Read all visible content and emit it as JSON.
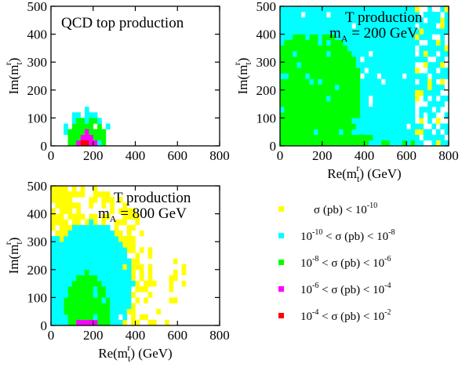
{
  "colors": {
    "band1": "#ffff00",
    "band2": "#00ffff",
    "band3": "#00ff00",
    "band4": "#ff00ff",
    "band5": "#ff0000"
  },
  "legend": {
    "entries": [
      {
        "color": "#ffff00",
        "left": "",
        "op1": "",
        "mid": "σ (pb)",
        "op2": "<",
        "right_base": "10",
        "right_exp": "-10"
      },
      {
        "color": "#00ffff",
        "left_base": "10",
        "left_exp": "-10",
        "op1": "<",
        "mid": "σ (pb)",
        "op2": "<",
        "right_base": "10",
        "right_exp": "-8"
      },
      {
        "color": "#00ff00",
        "left_base": "10",
        "left_exp": "-8",
        "op1": "<",
        "mid": "σ (pb)",
        "op2": "<",
        "right_base": "10",
        "right_exp": "-6"
      },
      {
        "color": "#ff00ff",
        "left_base": "10",
        "left_exp": "-6",
        "op1": "<",
        "mid": "σ (pb)",
        "op2": "<",
        "right_base": "10",
        "right_exp": "-4"
      },
      {
        "color": "#ff0000",
        "left_base": "10",
        "left_exp": "-4",
        "op1": "<",
        "mid": "σ (pb)",
        "op2": "<",
        "right_base": "10",
        "right_exp": "-2"
      }
    ]
  },
  "chart_data": [
    {
      "type": "heatmap",
      "title": "QCD top production",
      "subtitle": "",
      "xlabel": "Re(m_t^r) (GeV)",
      "ylabel": "Im(m_t^r)",
      "xlim": [
        0,
        800
      ],
      "ylim": [
        0,
        500
      ],
      "xticks": [
        "0",
        "200",
        "400",
        "600",
        "800"
      ],
      "yticks": [
        "0",
        "100",
        "200",
        "300",
        "400",
        "500"
      ],
      "show_xlabel": false,
      "grid": false,
      "regions": [
        {
          "band": "band2",
          "kind": "ellipse",
          "cx": 170,
          "cy": 0,
          "rx": 120,
          "ry": 130,
          "density": 0.5
        },
        {
          "band": "band3",
          "kind": "ellipse",
          "cx": 170,
          "cy": 0,
          "rx": 95,
          "ry": 100,
          "density": 0.95
        },
        {
          "band": "band4",
          "kind": "ellipse",
          "cx": 170,
          "cy": 0,
          "rx": 45,
          "ry": 55,
          "density": 1.0
        },
        {
          "band": "band5",
          "kind": "ellipse",
          "cx": 160,
          "cy": 0,
          "rx": 20,
          "ry": 22,
          "density": 1.0
        }
      ]
    },
    {
      "type": "heatmap",
      "title": "T production",
      "subtitle": "m_A = 200 GeV",
      "xlabel": "Re(m_t^r) (GeV)",
      "ylabel": "Im(m_t^r)",
      "xlim": [
        0,
        800
      ],
      "ylim": [
        0,
        500
      ],
      "xticks": [
        "0",
        "200",
        "400",
        "600",
        "800"
      ],
      "yticks": [
        "0",
        "100",
        "200",
        "300",
        "400",
        "500"
      ],
      "show_xlabel": true,
      "grid": false,
      "regions": [
        {
          "band": "band2",
          "kind": "box",
          "x0": 0,
          "x1": 650,
          "y0": 0,
          "y1": 500,
          "density": 0.97
        },
        {
          "band": "band2",
          "kind": "box",
          "x0": 650,
          "x1": 800,
          "y0": 0,
          "y1": 500,
          "density": 0.6
        },
        {
          "band": "band1",
          "kind": "box",
          "x0": 640,
          "x1": 800,
          "y0": 0,
          "y1": 500,
          "density": 0.12
        },
        {
          "band": "band3",
          "kind": "ellipse",
          "cx": 160,
          "cy": 190,
          "rx": 230,
          "ry": 220,
          "density": 0.93
        },
        {
          "band": "band3",
          "kind": "box",
          "x0": 0,
          "x1": 450,
          "y0": 0,
          "y1": 40,
          "density": 0.9
        },
        {
          "band": "band3",
          "kind": "box",
          "x0": 0,
          "x1": 650,
          "y0": 0,
          "y1": 20,
          "density": 0.35
        }
      ]
    },
    {
      "type": "heatmap",
      "title": "T production",
      "subtitle": "m_A = 800 GeV",
      "xlabel": "Re(m_t^r) (GeV)",
      "ylabel": "Im(m_t^r)",
      "xlim": [
        0,
        800
      ],
      "ylim": [
        0,
        500
      ],
      "xticks": [
        "0",
        "200",
        "400",
        "600",
        "800"
      ],
      "yticks": [
        "0",
        "100",
        "200",
        "300",
        "400",
        "500"
      ],
      "show_xlabel": true,
      "grid": false,
      "regions": [
        {
          "band": "band1",
          "kind": "ellipse",
          "cx": 150,
          "cy": 220,
          "rx": 330,
          "ry": 280,
          "density": 0.55
        },
        {
          "band": "band1",
          "kind": "box",
          "x0": 0,
          "x1": 150,
          "y0": 250,
          "y1": 500,
          "density": 0.75
        },
        {
          "band": "band1",
          "kind": "box",
          "x0": 380,
          "x1": 650,
          "y0": 0,
          "y1": 250,
          "density": 0.18
        },
        {
          "band": "band2",
          "kind": "ellipse",
          "cx": 190,
          "cy": 150,
          "rx": 200,
          "ry": 220,
          "density": 0.96
        },
        {
          "band": "band2",
          "kind": "box",
          "x0": 0,
          "x1": 330,
          "y0": 0,
          "y1": 330,
          "density": 0.95
        },
        {
          "band": "band3",
          "kind": "ellipse",
          "cx": 170,
          "cy": 0,
          "rx": 120,
          "ry": 190,
          "density": 0.97
        },
        {
          "band": "band4",
          "kind": "box",
          "x0": 120,
          "x1": 230,
          "y0": 0,
          "y1": 12,
          "density": 1.0
        }
      ]
    }
  ]
}
